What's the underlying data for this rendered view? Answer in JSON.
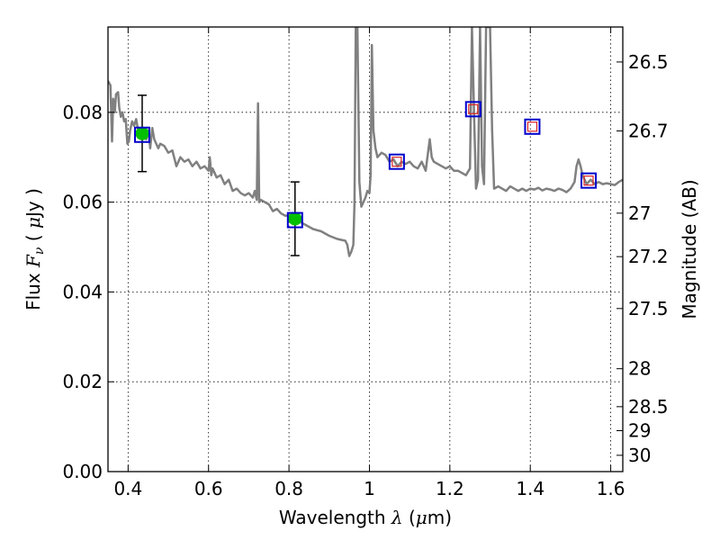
{
  "chart_data": {
    "type": "line",
    "xlabel": "Wavelength",
    "xlabel_symbol": "λ",
    "xlabel_unit_open": " (",
    "xlabel_unit_mu": "μ",
    "xlabel_unit_rest": "m)",
    "ylabel": "Flux",
    "ylabel_symbol": "F",
    "ylabel_subscript": "ν",
    "ylabel_unit_open": " ( ",
    "ylabel_unit_mu": "μ",
    "ylabel_unit_rest": "Jy )",
    "y2label": "Magnitude (AB)",
    "xlim": [
      0.35,
      1.63
    ],
    "ylim": [
      0,
      0.099
    ],
    "grid": true,
    "x_ticks": [
      {
        "value": 0.4,
        "label": "0.4"
      },
      {
        "value": 0.6,
        "label": "0.6"
      },
      {
        "value": 0.8,
        "label": "0.8"
      },
      {
        "value": 1.0,
        "label": "1"
      },
      {
        "value": 1.2,
        "label": "1.2"
      },
      {
        "value": 1.4,
        "label": "1.4"
      },
      {
        "value": 1.6,
        "label": "1.6"
      }
    ],
    "y_ticks": [
      {
        "value": 0.0,
        "label": "0.00"
      },
      {
        "value": 0.02,
        "label": "0.02"
      },
      {
        "value": 0.04,
        "label": "0.04"
      },
      {
        "value": 0.06,
        "label": "0.06"
      },
      {
        "value": 0.08,
        "label": "0.08"
      }
    ],
    "mag_ticks": [
      {
        "value": 26.5,
        "label": "26.5"
      },
      {
        "value": 26.7,
        "label": "26.7"
      },
      {
        "value": 27,
        "label": "27"
      },
      {
        "value": 27.2,
        "label": "27.2"
      },
      {
        "value": 27.5,
        "label": "27.5"
      },
      {
        "value": 28,
        "label": "28"
      },
      {
        "value": 28.5,
        "label": "28.5"
      },
      {
        "value": 29,
        "label": "29"
      },
      {
        "value": 30,
        "label": "30"
      }
    ],
    "series": [
      {
        "type": "line",
        "color": "#808080",
        "x": [
          0.35,
          0.356,
          0.36,
          0.363,
          0.367,
          0.37,
          0.375,
          0.378,
          0.382,
          0.386,
          0.39,
          0.394,
          0.398,
          0.402,
          0.405,
          0.41,
          0.415,
          0.42,
          0.425,
          0.43,
          0.435,
          0.44,
          0.445,
          0.45,
          0.455,
          0.46,
          0.465,
          0.47,
          0.475,
          0.48,
          0.49,
          0.5,
          0.51,
          0.52,
          0.53,
          0.54,
          0.55,
          0.56,
          0.57,
          0.58,
          0.59,
          0.6,
          0.603,
          0.607,
          0.61,
          0.62,
          0.63,
          0.64,
          0.65,
          0.66,
          0.67,
          0.68,
          0.69,
          0.7,
          0.71,
          0.715,
          0.72,
          0.723,
          0.726,
          0.73,
          0.74,
          0.75,
          0.76,
          0.77,
          0.78,
          0.79,
          0.8,
          0.82,
          0.84,
          0.86,
          0.88,
          0.9,
          0.92,
          0.935,
          0.94,
          0.945,
          0.95,
          0.955,
          0.96,
          0.963,
          0.966,
          0.97,
          0.972,
          0.975,
          0.98,
          0.985,
          0.99,
          0.995,
          1.0,
          1.003,
          1.006,
          1.01,
          1.015,
          1.02,
          1.03,
          1.04,
          1.05,
          1.06,
          1.07,
          1.08,
          1.09,
          1.1,
          1.11,
          1.12,
          1.13,
          1.14,
          1.15,
          1.155,
          1.16,
          1.17,
          1.18,
          1.19,
          1.2,
          1.21,
          1.22,
          1.23,
          1.24,
          1.25,
          1.255,
          1.26,
          1.265,
          1.27,
          1.275,
          1.28,
          1.285,
          1.29,
          1.295,
          1.3,
          1.305,
          1.31,
          1.32,
          1.33,
          1.34,
          1.35,
          1.36,
          1.37,
          1.38,
          1.39,
          1.4,
          1.41,
          1.42,
          1.43,
          1.44,
          1.45,
          1.46,
          1.47,
          1.48,
          1.49,
          1.5,
          1.51,
          1.515,
          1.52,
          1.525,
          1.53,
          1.54,
          1.55,
          1.56,
          1.57,
          1.58,
          1.59,
          1.6,
          1.61,
          1.62,
          1.63
        ],
        "y": [
          0.087,
          0.086,
          0.0735,
          0.083,
          0.08,
          0.084,
          0.0845,
          0.081,
          0.079,
          0.08,
          0.078,
          0.0785,
          0.073,
          0.0735,
          0.076,
          0.078,
          0.077,
          0.0785,
          0.076,
          0.075,
          0.0755,
          0.0745,
          0.074,
          0.076,
          0.072,
          0.0765,
          0.074,
          0.073,
          0.072,
          0.073,
          0.0725,
          0.071,
          0.0715,
          0.068,
          0.07,
          0.069,
          0.0695,
          0.068,
          0.069,
          0.0675,
          0.068,
          0.067,
          0.07,
          0.066,
          0.0675,
          0.0655,
          0.066,
          0.064,
          0.065,
          0.0625,
          0.063,
          0.062,
          0.0615,
          0.062,
          0.061,
          0.0625,
          0.0605,
          0.082,
          0.06,
          0.0605,
          0.06,
          0.0595,
          0.058,
          0.0585,
          0.0575,
          0.057,
          0.057,
          0.056,
          0.055,
          0.054,
          0.0535,
          0.0525,
          0.0518,
          0.0515,
          0.0514,
          0.0505,
          0.048,
          0.049,
          0.0505,
          0.06,
          0.099,
          0.099,
          0.085,
          0.0645,
          0.059,
          0.06,
          0.061,
          0.0625,
          0.062,
          0.066,
          0.095,
          0.076,
          0.072,
          0.07,
          0.071,
          0.0705,
          0.069,
          0.0695,
          0.068,
          0.069,
          0.0685,
          0.069,
          0.068,
          0.0675,
          0.069,
          0.067,
          0.074,
          0.07,
          0.069,
          0.0685,
          0.068,
          0.0675,
          0.068,
          0.067,
          0.067,
          0.0665,
          0.066,
          0.0675,
          0.099,
          0.08,
          0.063,
          0.065,
          0.099,
          0.068,
          0.064,
          0.099,
          0.099,
          0.099,
          0.076,
          0.063,
          0.0635,
          0.063,
          0.0625,
          0.0635,
          0.063,
          0.0625,
          0.063,
          0.0625,
          0.063,
          0.0628,
          0.0632,
          0.0626,
          0.063,
          0.0628,
          0.0625,
          0.063,
          0.0627,
          0.0622,
          0.063,
          0.0645,
          0.068,
          0.0695,
          0.068,
          0.066,
          0.064,
          0.065,
          0.064,
          0.0645,
          0.064,
          0.0642,
          0.064,
          0.0638,
          0.0645,
          0.065
        ]
      },
      {
        "type": "errorbar",
        "color": "#000000",
        "points": [
          {
            "x": 0.435,
            "y": 0.0753,
            "yerr": 0.0085
          },
          {
            "x": 0.815,
            "y": 0.0563,
            "yerr": 0.0082
          }
        ]
      },
      {
        "type": "scatter",
        "marker": "circle",
        "color": "#00c000",
        "points": [
          {
            "x": 0.435,
            "y": 0.0753
          },
          {
            "x": 0.815,
            "y": 0.0563
          }
        ]
      },
      {
        "type": "scatter",
        "marker": "open-square",
        "color": "#0000cc",
        "points": [
          {
            "x": 0.435,
            "y": 0.075
          },
          {
            "x": 0.815,
            "y": 0.056
          },
          {
            "x": 1.068,
            "y": 0.069
          },
          {
            "x": 1.258,
            "y": 0.0807
          },
          {
            "x": 1.405,
            "y": 0.0768
          },
          {
            "x": 1.545,
            "y": 0.0648
          }
        ]
      },
      {
        "type": "scatter",
        "marker": "small-open-square",
        "color": "#dd2222",
        "points": [
          {
            "x": 1.068,
            "y": 0.069
          },
          {
            "x": 1.258,
            "y": 0.0807
          },
          {
            "x": 1.405,
            "y": 0.0768
          },
          {
            "x": 1.545,
            "y": 0.0648
          }
        ]
      }
    ]
  }
}
